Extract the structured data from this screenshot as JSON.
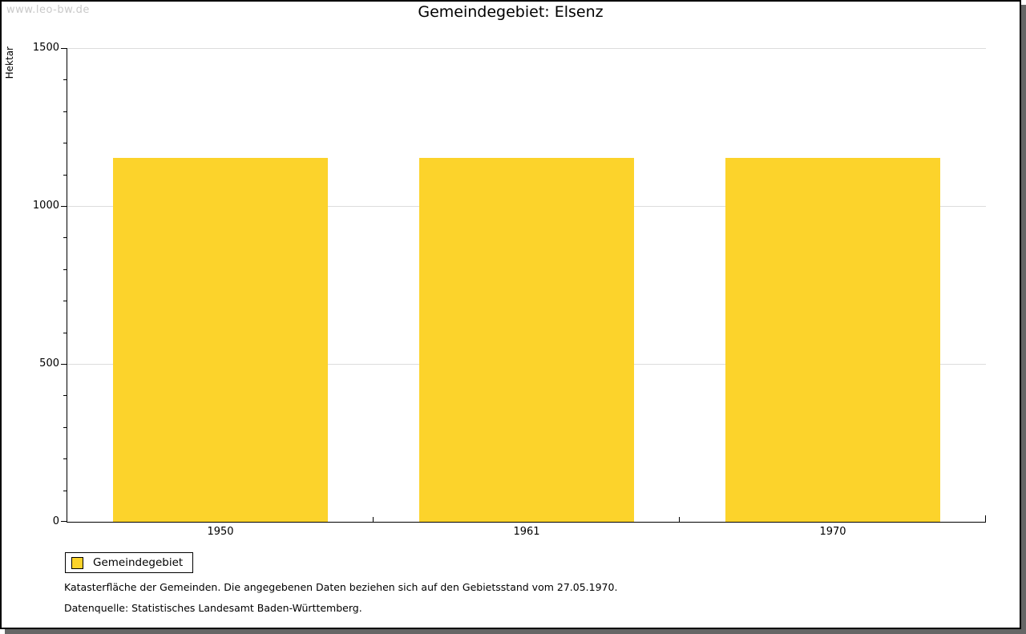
{
  "watermark": "www.leo-bw.de",
  "chart_data": {
    "type": "bar",
    "title": "Gemeindegebiet: Elsenz",
    "xlabel": "",
    "ylabel": "Hektar",
    "categories": [
      "1950",
      "1961",
      "1970"
    ],
    "series": [
      {
        "name": "Gemeindegebiet",
        "values": [
          1153,
          1153,
          1153
        ]
      }
    ],
    "ylim": [
      0,
      1500
    ],
    "yticks_major": [
      0,
      500,
      1000,
      1500
    ],
    "ytick_minor_step": 100,
    "grid": "horizontal-major",
    "legend_position": "bottom-left",
    "bar_color": "#FCD32B",
    "grid_color": "#DCDCDC",
    "axis_color": "#000000"
  },
  "footnotes": [
    "Katasterfläche der Gemeinden. Die angegebenen Daten beziehen sich auf den Gebietsstand vom 27.05.1970.",
    "Datenquelle: Statistisches Landesamt Baden-Württemberg."
  ]
}
